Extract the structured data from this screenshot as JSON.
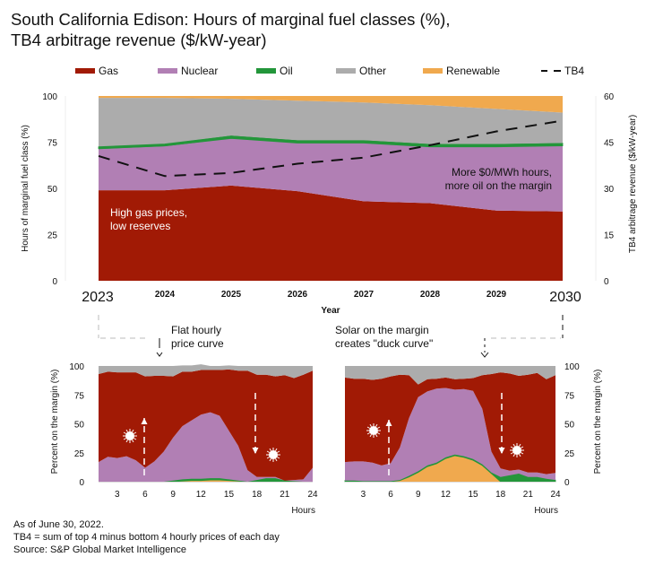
{
  "title_lines": [
    "South California Edison: Hours of marginal fuel classes (%),",
    "TB4 arbitrage revenue ($/kW-year)"
  ],
  "legend": [
    {
      "name": "Gas",
      "color": "#a11a05"
    },
    {
      "name": "Nuclear",
      "color": "#b17fb4"
    },
    {
      "name": "Oil",
      "color": "#23963a"
    },
    {
      "name": "Other",
      "color": "#acacac"
    },
    {
      "name": "Renewable",
      "color": "#f0a94e"
    },
    {
      "name": "TB4",
      "color": "#111111",
      "style": "dashed"
    }
  ],
  "chart_data": [
    {
      "type": "area",
      "stacked": true,
      "title": "Hours of marginal fuel classes (%), TB4 arbitrage revenue ($/kW-year)",
      "xlabel": "Year",
      "ylabel": "Hours of marginal fuel class (%)",
      "y2label": "TB4 arbitrage revenue ($/kW-year)",
      "ylim": [
        0,
        100
      ],
      "y2lim": [
        0,
        60
      ],
      "yticks": [
        "0",
        "25",
        "50",
        "75",
        "100"
      ],
      "y2ticks": [
        "0",
        "15",
        "30",
        "45",
        "60"
      ],
      "categories": [
        "2023",
        "2024",
        "2025",
        "2026",
        "2027",
        "2028",
        "2029",
        "2030"
      ],
      "series": [
        {
          "name": "Gas",
          "values": [
            49,
            49,
            51.5,
            48.5,
            43,
            42,
            38,
            37.5
          ]
        },
        {
          "name": "Nuclear",
          "values": [
            22.5,
            24,
            25.5,
            26,
            31.5,
            30.5,
            34.5,
            35.5
          ]
        },
        {
          "name": "Oil",
          "values": [
            1,
            1,
            1.5,
            1.5,
            1.5,
            1.5,
            1.5,
            1.5
          ]
        },
        {
          "name": "Other",
          "values": [
            26.5,
            25,
            20,
            21.5,
            20.5,
            21,
            19,
            16.5
          ]
        },
        {
          "name": "Renewable",
          "values": [
            1,
            1,
            1.5,
            2.5,
            3.5,
            5,
            7,
            9
          ]
        }
      ],
      "line_series": [
        {
          "name": "TB4",
          "axis": "right",
          "values": [
            40.5,
            34,
            35,
            38,
            40,
            44,
            48.5,
            52
          ]
        }
      ],
      "annotations": [
        {
          "text": "High gas prices,\nlow reserves",
          "near": "2023-2024 gas area"
        },
        {
          "text": "More $0/MWh hours,\nmore oil on the margin",
          "near": "2029-2030 nuclear area"
        }
      ],
      "grid": false
    },
    {
      "type": "area",
      "stacked": true,
      "title": "Flat hourly price curve (2023)",
      "xlabel": "Hours",
      "ylabel": "Percent on the margin (%)",
      "ylim": [
        0,
        100
      ],
      "yticks": [
        "0",
        "25",
        "50",
        "75",
        "100"
      ],
      "xticks": [
        "3",
        "6",
        "9",
        "12",
        "15",
        "18",
        "21",
        "24"
      ],
      "x": [
        1,
        2,
        3,
        4,
        5,
        6,
        7,
        8,
        9,
        10,
        11,
        12,
        13,
        14,
        15,
        16,
        17,
        18,
        19,
        20,
        21,
        22,
        23,
        24
      ],
      "series": [
        {
          "name": "Renewable",
          "values": [
            0,
            0,
            0,
            0,
            0,
            0,
            0,
            0,
            0,
            0.5,
            1,
            1,
            1.5,
            1.5,
            1,
            0.5,
            0,
            0,
            0,
            0,
            0,
            0,
            0,
            0
          ]
        },
        {
          "name": "Oil",
          "values": [
            0,
            0,
            0,
            0,
            0,
            0,
            0,
            0,
            1,
            1.5,
            1.5,
            1.5,
            1.5,
            1.5,
            1,
            0.5,
            0,
            1.5,
            3,
            3,
            1,
            0.5,
            0,
            0
          ]
        },
        {
          "name": "Nuclear",
          "values": [
            17,
            21.5,
            20.5,
            22,
            18.5,
            12,
            17.5,
            26,
            37,
            46,
            50.5,
            55.5,
            57,
            54,
            42,
            30,
            10,
            2.5,
            1,
            1,
            0,
            1,
            2,
            12
          ]
        },
        {
          "name": "Gas",
          "values": [
            76,
            73.5,
            74,
            72.5,
            76,
            79,
            74,
            65.5,
            53,
            47,
            42,
            38.5,
            36.5,
            39.5,
            53,
            65,
            86,
            88.5,
            88.5,
            87,
            91,
            88,
            90.5,
            84
          ]
        },
        {
          "name": "Other",
          "values": [
            7,
            5,
            5.5,
            5.5,
            5.5,
            9,
            8.5,
            8.5,
            9,
            5.5,
            5.5,
            5,
            3.5,
            3.5,
            3.5,
            4,
            4,
            7.5,
            7.5,
            9,
            8,
            10.5,
            7.5,
            4
          ]
        }
      ],
      "annotations": [
        {
          "text": "Flat hourly\nprice curve"
        }
      ]
    },
    {
      "type": "area",
      "stacked": true,
      "title": "Solar on the margin creates \"duck curve\" (2030)",
      "xlabel": "Hours",
      "ylabel": "Percent on the margin (%)",
      "ylim": [
        0,
        100
      ],
      "yticks": [
        "0",
        "25",
        "50",
        "75",
        "100"
      ],
      "xticks": [
        "3",
        "6",
        "9",
        "12",
        "15",
        "18",
        "21",
        "24"
      ],
      "x": [
        1,
        2,
        3,
        4,
        5,
        6,
        7,
        8,
        9,
        10,
        11,
        12,
        13,
        14,
        15,
        16,
        17,
        18,
        19,
        20,
        21,
        22,
        23,
        24
      ],
      "series": [
        {
          "name": "Renewable",
          "values": [
            0,
            0,
            0,
            0,
            0,
            0,
            1,
            4,
            8,
            13,
            15.5,
            20,
            22.5,
            21,
            18.5,
            14,
            7,
            0,
            0,
            0,
            0,
            0,
            0,
            0
          ]
        },
        {
          "name": "Oil",
          "values": [
            1,
            1,
            0.5,
            0.5,
            0.5,
            0.5,
            0.5,
            1,
            1,
            1,
            1,
            1,
            1,
            1,
            1,
            1,
            1,
            4,
            5.5,
            7,
            4,
            4,
            2.5,
            1.5
          ]
        },
        {
          "name": "Nuclear",
          "values": [
            16,
            16.5,
            17,
            16,
            13.5,
            15.5,
            28,
            50,
            64,
            64,
            64,
            60,
            56,
            58,
            59,
            48,
            18,
            7.5,
            4,
            3.5,
            4,
            4,
            4,
            6
          ]
        },
        {
          "name": "Gas",
          "values": [
            73,
            71.5,
            71.5,
            71.5,
            75,
            75,
            63,
            37,
            11,
            10.5,
            8.5,
            9,
            9,
            9,
            11,
            29,
            67,
            83,
            84,
            81,
            84.5,
            86,
            82,
            84.5
          ]
        },
        {
          "name": "Other",
          "values": [
            10,
            11,
            11,
            12,
            11,
            9,
            7.5,
            8,
            16,
            11.5,
            11,
            10,
            11.5,
            11,
            10.5,
            8,
            7,
            5.5,
            6.5,
            8.5,
            7.5,
            6,
            11.5,
            8
          ]
        }
      ],
      "annotations": [
        {
          "text": "Solar on the margin\ncreates \"duck curve\""
        }
      ]
    }
  ],
  "top_chart": {
    "y_axis_label": "Hours of marginal fuel class (%)",
    "y2_axis_label": "TB4 arbitrage revenue ($/kW-year)",
    "x_axis_label": "Year",
    "annot_gas": [
      "High gas prices,",
      "low reserves"
    ],
    "annot_nuc": [
      "More $0/MWh hours,",
      "more oil on the margin"
    ]
  },
  "bottom_left": {
    "callout": [
      "Flat hourly",
      "price curve"
    ],
    "y_axis_label": "Percent on the margin (%)",
    "x_axis_label": "Hours"
  },
  "bottom_right": {
    "callout": [
      "Solar on the margin",
      "creates \"duck curve\""
    ],
    "y_axis_label": "Percent on the margin (%)",
    "x_axis_label": "Hours"
  },
  "footnotes": [
    "As of June 30, 2022.",
    "TB4 = sum of top 4 minus bottom 4 hourly prices of each day",
    "Source: S&P Global Market Intelligence"
  ]
}
